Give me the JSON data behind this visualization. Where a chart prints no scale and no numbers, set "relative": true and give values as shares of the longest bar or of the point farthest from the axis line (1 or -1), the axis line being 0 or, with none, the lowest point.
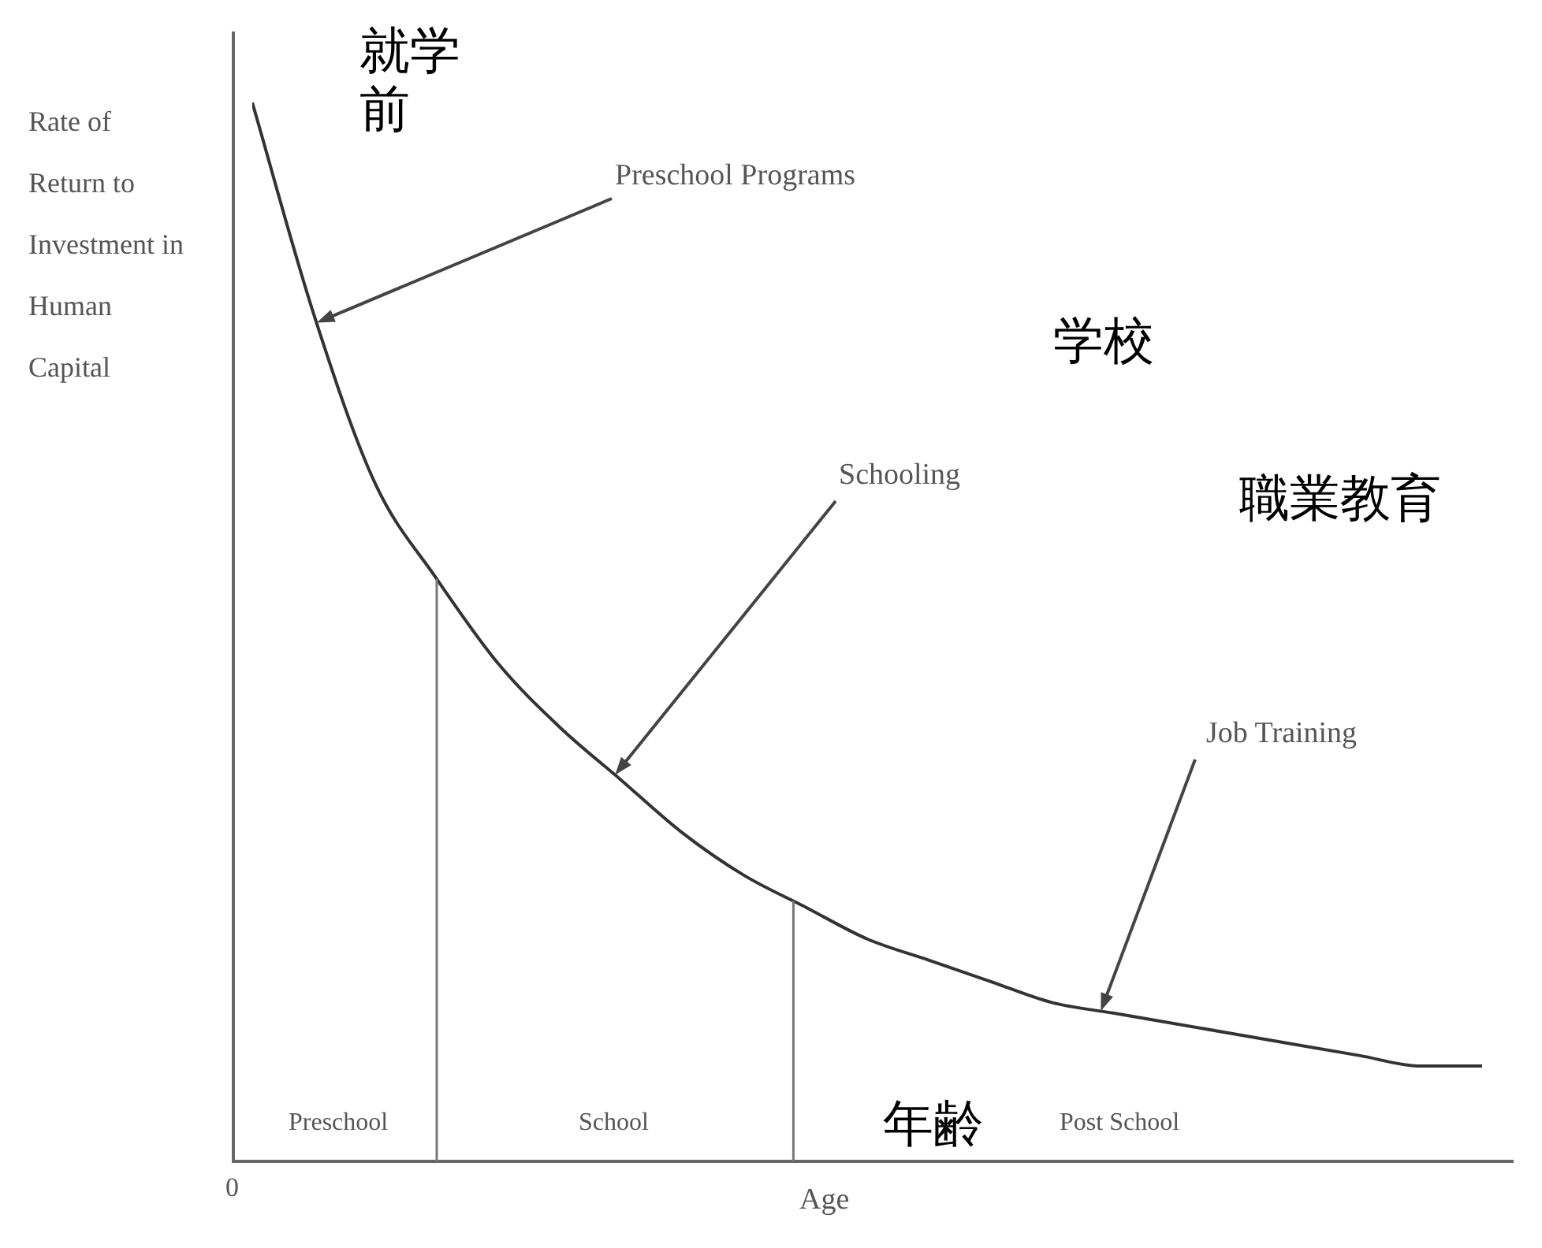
{
  "chart_data": {
    "type": "line",
    "relative": true,
    "ylabel": "Rate of Return to Investment in Human Capital",
    "xlabel": "Age",
    "categories": [
      null,
      null,
      null,
      null,
      null,
      null,
      null,
      null,
      null,
      null,
      null,
      null,
      null,
      null,
      null,
      null,
      null,
      null,
      null,
      null,
      null
    ],
    "series": [
      {
        "color": "#333333",
        "values": [
          1,
          0.8,
          0.64,
          0.55,
          0.47,
          0.41,
          0.36,
          0.31,
          0.27,
          0.24,
          0.21,
          0.19,
          0.17,
          0.15,
          0.14,
          0.13,
          0.12,
          0.11,
          0.1,
          0.09,
          0.09
        ]
      }
    ],
    "annotations": [
      "Preschool Programs",
      "Schooling",
      "Job Training",
      "就学前",
      "学校",
      "職業教育",
      "年齢",
      "0",
      "Preschool",
      "School",
      "Post School"
    ],
    "legend": false,
    "marker": "none",
    "line_style": "solid"
  }
}
